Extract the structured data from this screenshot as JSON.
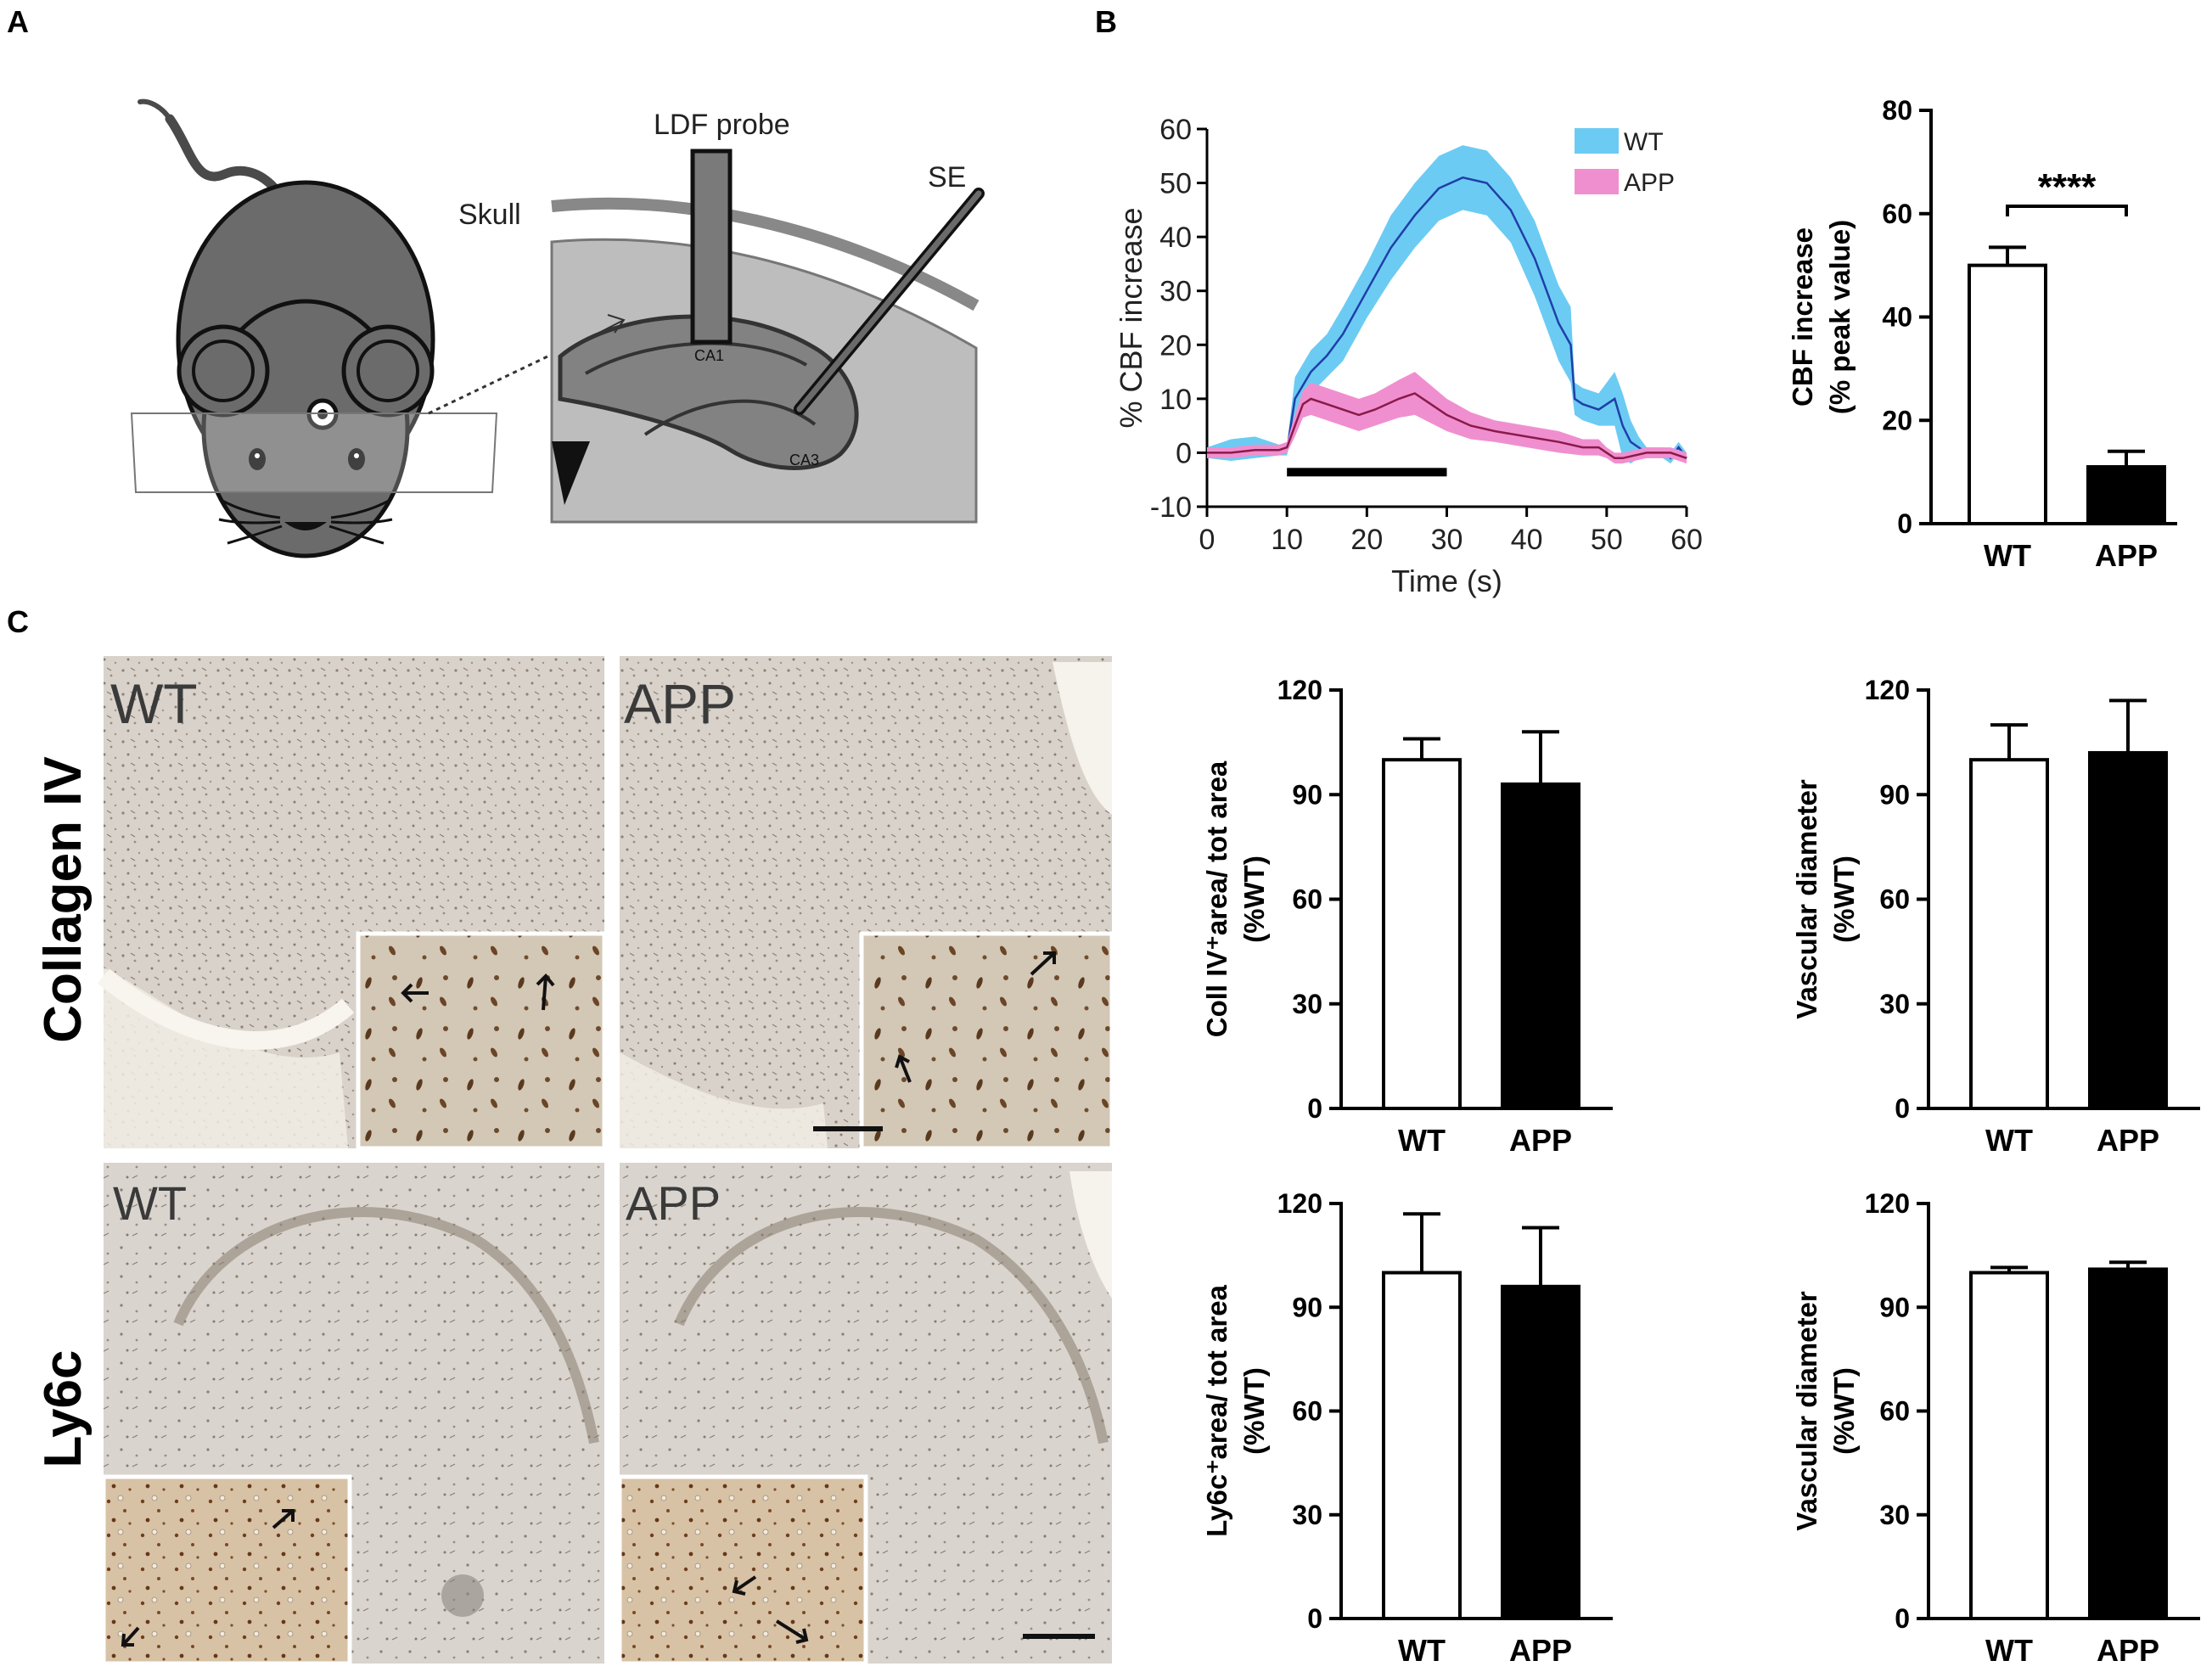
{
  "panels": {
    "a": "A",
    "b": "B",
    "c": "C"
  },
  "schematic": {
    "ldf_probe": "LDF probe",
    "skull": "Skull",
    "se": "SE",
    "ca1": "CA1",
    "ca3": "CA3"
  },
  "histology": {
    "row_labels": [
      "Collagen IV",
      "Ly6c"
    ],
    "top_left": "WT",
    "top_right": "APP",
    "bottom_left": "WT",
    "bottom_right": "APP"
  },
  "colors": {
    "wt_band": "#6ccbf3",
    "wt_line": "#1f3fa8",
    "app_band": "#f08fcf",
    "app_line": "#8a1a4a",
    "bar_app": "#000000",
    "bar_wt": "#ffffff"
  },
  "chart_data": [
    {
      "id": "cbf-time-course",
      "type": "line",
      "xlabel": "Time (s)",
      "ylabel": "% CBF increase",
      "xlim": [
        0,
        60
      ],
      "ylim": [
        -10,
        60
      ],
      "xticks": [
        "0",
        "10",
        "20",
        "30",
        "40",
        "50",
        "60"
      ],
      "yticks": [
        "-10",
        "0",
        "10",
        "20",
        "30",
        "40",
        "50",
        "60"
      ],
      "stimulus_bar": [
        10,
        30
      ],
      "series": [
        {
          "name": "WT",
          "x": [
            0,
            3,
            6,
            9,
            10,
            11,
            13,
            15,
            17,
            20,
            23,
            26,
            29,
            32,
            35,
            38,
            41,
            44,
            45.5,
            46,
            47,
            49,
            51,
            52,
            53,
            54,
            55,
            57,
            58,
            59,
            60
          ],
          "y": [
            0,
            0.5,
            1,
            0.5,
            0.5,
            10,
            15,
            18,
            22,
            30,
            38,
            44,
            49,
            51,
            50,
            45,
            36,
            24,
            20,
            10,
            9,
            8,
            10,
            5,
            2,
            1,
            0,
            0,
            -1,
            1,
            -1
          ],
          "band": [
            1,
            2,
            2,
            1,
            1,
            4,
            4,
            4,
            5,
            5,
            6,
            6,
            6,
            6,
            6,
            6,
            7,
            7,
            7,
            3,
            3,
            3,
            5,
            6,
            4,
            2,
            1,
            1,
            1,
            1,
            1
          ]
        },
        {
          "name": "APP",
          "x": [
            0,
            3,
            6,
            9,
            10,
            11,
            12,
            13,
            15,
            17,
            19,
            21,
            24,
            26,
            28,
            30,
            33,
            36,
            40,
            44,
            47,
            49,
            50,
            51,
            52,
            55,
            58,
            60
          ],
          "y": [
            0,
            0,
            0.5,
            0.5,
            1,
            5,
            9,
            10,
            9,
            8,
            7,
            8,
            10,
            11,
            9,
            7,
            5,
            4,
            3,
            2,
            1,
            1,
            0,
            -1,
            -1,
            0,
            0,
            -1
          ],
          "band": [
            1,
            1,
            1,
            1,
            1,
            2,
            2.5,
            3,
            3,
            3,
            3,
            3,
            3.5,
            4,
            3.5,
            3,
            2.5,
            2,
            2,
            2,
            1.5,
            1.5,
            1,
            1,
            1,
            1,
            1,
            1
          ]
        }
      ]
    },
    {
      "id": "cbf-peak",
      "type": "bar",
      "categories": [
        "WT",
        "APP"
      ],
      "values": [
        50,
        11
      ],
      "errors": [
        3.5,
        3
      ],
      "ylabel_lines": [
        "CBF increase",
        "(% peak value)"
      ],
      "ylim": [
        0,
        80
      ],
      "yticks": [
        "0",
        "20",
        "40",
        "60",
        "80"
      ],
      "significance": "****"
    },
    {
      "id": "coll-area",
      "type": "bar",
      "categories": [
        "WT",
        "APP"
      ],
      "values": [
        100,
        93
      ],
      "errors": [
        6,
        15
      ],
      "ylabel_lines": [
        "Coll IV⁺area/ tot area",
        "(%WT)"
      ],
      "ylim": [
        0,
        120
      ],
      "yticks": [
        "0",
        "30",
        "60",
        "90",
        "120"
      ]
    },
    {
      "id": "coll-diameter",
      "type": "bar",
      "categories": [
        "WT",
        "APP"
      ],
      "values": [
        100,
        102
      ],
      "errors": [
        10,
        15
      ],
      "ylabel_lines": [
        "Vascular diameter",
        "(%WT)"
      ],
      "ylim": [
        0,
        120
      ],
      "yticks": [
        "0",
        "30",
        "60",
        "90",
        "120"
      ]
    },
    {
      "id": "ly6c-area",
      "type": "bar",
      "categories": [
        "WT",
        "APP"
      ],
      "values": [
        100,
        96
      ],
      "errors": [
        17,
        17
      ],
      "ylabel_lines": [
        "Ly6c⁺area/ tot area",
        "(%WT)"
      ],
      "ylim": [
        0,
        120
      ],
      "yticks": [
        "0",
        "30",
        "60",
        "90",
        "120"
      ]
    },
    {
      "id": "ly6c-diameter",
      "type": "bar",
      "categories": [
        "WT",
        "APP"
      ],
      "values": [
        100,
        101
      ],
      "errors": [
        1.5,
        2
      ],
      "ylabel_lines": [
        "Vascular diameter",
        "(%WT)"
      ],
      "ylim": [
        0,
        120
      ],
      "yticks": [
        "0",
        "30",
        "60",
        "90",
        "120"
      ]
    }
  ]
}
